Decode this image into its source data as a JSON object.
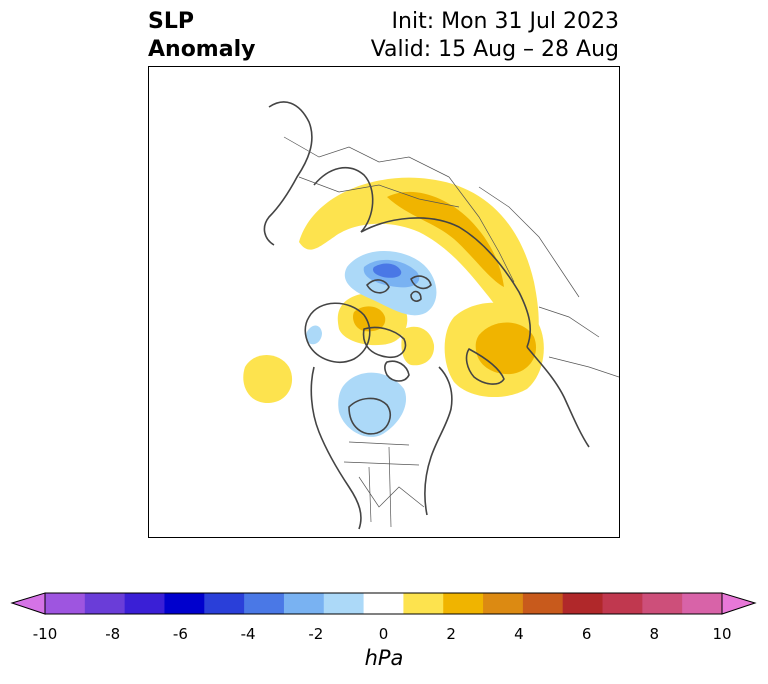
{
  "title": {
    "left_line1": "SLP",
    "left_line2": "Anomaly",
    "right_line1": "Init: Mon 31 Jul 2023",
    "right_line2": "Valid: 15 Aug – 28 Aug"
  },
  "map": {
    "projection": "north-polar-stereographic",
    "field": "sea level pressure anomaly",
    "features": [
      {
        "type": "positive-anomaly",
        "region": "northern Europe / Scandinavia / western Russia",
        "level_hpa": 2
      },
      {
        "type": "positive-anomaly",
        "region": "eastern Siberia / Sea of Okhotsk",
        "level_hpa": 2
      },
      {
        "type": "positive-anomaly",
        "region": "Canadian Arctic / Greenland",
        "level_hpa": 2
      },
      {
        "type": "positive-anomaly",
        "region": "North Atlantic",
        "level_hpa": 1
      },
      {
        "type": "negative-anomaly",
        "region": "Barents / Kara Sea",
        "level_hpa": -3
      },
      {
        "type": "negative-anomaly",
        "region": "Hudson Bay / central Canada",
        "level_hpa": -1
      }
    ]
  },
  "colorbar": {
    "unit": "hPa",
    "ticks": [
      "-10",
      "-8",
      "-6",
      "-4",
      "-2",
      "0",
      "2",
      "4",
      "6",
      "8",
      "10"
    ],
    "extend": "both",
    "colors": [
      "#d573e6",
      "#9e55e0",
      "#6a3dd8",
      "#3a1fd6",
      "#0000cd",
      "#2a3fd9",
      "#4a78e6",
      "#79b2f2",
      "#acd9f8",
      "#ffffff",
      "#fde34e",
      "#f0b400",
      "#dc8a12",
      "#c85a1c",
      "#b0282a",
      "#c0384f",
      "#cd4f7a",
      "#d863a8",
      "#e878d8"
    ]
  }
}
